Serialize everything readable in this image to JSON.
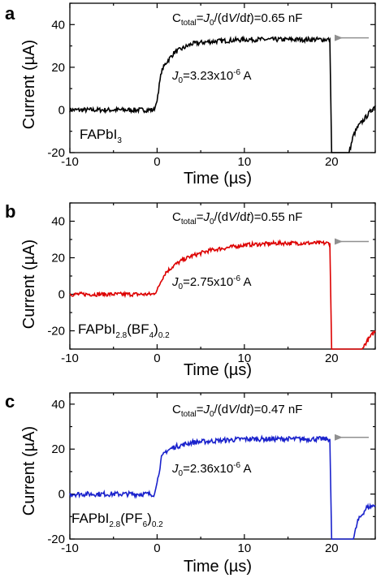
{
  "panels": [
    {
      "letter": "a",
      "ctotal_prefix": "C",
      "ctotal_sub": "total",
      "ctotal_eq": "=",
      "ctotal_j": "J",
      "ctotal_j_sub": "0",
      "ctotal_mid": "/(d",
      "ctotal_v": "V",
      "ctotal_slash": "/d",
      "ctotal_t": "t",
      "ctotal_value": ")=0.65 nF",
      "j0_j": "J",
      "j0_sub": "0",
      "j0_text": "=3.23x10",
      "j0_exp": "-6",
      "j0_unit": " A",
      "sample_main": "FAPbI",
      "sample_sub1": "3",
      "sample_mid": "",
      "sample_sub2": "",
      "sample_end": "",
      "sample_sub3": "",
      "color": "#000000"
    },
    {
      "letter": "b",
      "ctotal_prefix": "C",
      "ctotal_sub": "total",
      "ctotal_eq": "=",
      "ctotal_j": "J",
      "ctotal_j_sub": "0",
      "ctotal_mid": "/(d",
      "ctotal_v": "V",
      "ctotal_slash": "/d",
      "ctotal_t": "t",
      "ctotal_value": ")=0.55 nF",
      "j0_j": "J",
      "j0_sub": "0",
      "j0_text": "=2.75x10",
      "j0_exp": "-6",
      "j0_unit": " A",
      "sample_main": "FAPbI",
      "sample_sub1": "2.8",
      "sample_mid": "(BF",
      "sample_sub2": "4",
      "sample_end": ")",
      "sample_sub3": "0.2",
      "color": "#dd0000"
    },
    {
      "letter": "c",
      "ctotal_prefix": "C",
      "ctotal_sub": "total",
      "ctotal_eq": "=",
      "ctotal_j": "J",
      "ctotal_j_sub": "0",
      "ctotal_mid": "/(d",
      "ctotal_v": "V",
      "ctotal_slash": "/d",
      "ctotal_t": "t",
      "ctotal_value": ")=0.47 nF",
      "j0_j": "J",
      "j0_sub": "0",
      "j0_text": "=2.36x10",
      "j0_exp": "-6",
      "j0_unit": " A",
      "sample_main": "FAPbI",
      "sample_sub1": "2.8",
      "sample_mid": "(PF",
      "sample_sub2": "6",
      "sample_end": ")",
      "sample_sub3": "0.2",
      "color": "#1a22cc"
    }
  ],
  "chart_data": [
    {
      "type": "line",
      "xlabel": "Time (µs)",
      "ylabel": "Current (µA)",
      "xlim": [
        -10,
        25
      ],
      "ylim": [
        -20,
        50
      ],
      "xticks": [
        -10,
        0,
        10,
        20
      ],
      "yticks": [
        -20,
        0,
        20,
        40
      ],
      "series": [
        {
          "x": [
            -10,
            -0.3,
            0,
            0.5,
            1,
            2,
            3,
            4,
            6,
            8,
            10,
            12,
            14,
            16,
            18,
            19.8,
            20,
            22,
            22.5,
            23,
            24,
            25
          ],
          "y": [
            0,
            0,
            5,
            18,
            22,
            27,
            29,
            31,
            32,
            32.5,
            33,
            33,
            33,
            33,
            33,
            33,
            -20,
            -20,
            -12,
            -8,
            -3,
            2
          ]
        }
      ]
    },
    {
      "type": "line",
      "xlabel": "Time (µs)",
      "ylabel": "Current (µA)",
      "xlim": [
        -10,
        25
      ],
      "ylim": [
        -30,
        50
      ],
      "xticks": [
        -10,
        0,
        10,
        20
      ],
      "yticks": [
        -20,
        0,
        20,
        40
      ],
      "series": [
        {
          "x": [
            -10,
            -0.5,
            0,
            0.5,
            1,
            2,
            3,
            4,
            6,
            8,
            10,
            12,
            14,
            16,
            18,
            19.8,
            20,
            23.5,
            24,
            24.5,
            25
          ],
          "y": [
            0,
            0,
            2,
            8,
            12,
            16,
            19,
            21,
            24,
            25.5,
            27,
            27.5,
            28,
            28,
            28,
            28,
            -30,
            -30,
            -26,
            -23,
            -20
          ]
        }
      ]
    },
    {
      "type": "line",
      "xlabel": "Time (µs)",
      "ylabel": "Current (µA)",
      "xlim": [
        -10,
        25
      ],
      "ylim": [
        -20,
        45
      ],
      "xticks": [
        -10,
        0,
        10,
        20
      ],
      "yticks": [
        -20,
        0,
        20,
        40
      ],
      "series": [
        {
          "x": [
            -10,
            -0.3,
            0,
            0.5,
            1,
            2,
            3,
            4,
            6,
            8,
            10,
            12,
            14,
            16,
            18,
            19.8,
            20,
            22.5,
            23,
            24,
            25
          ],
          "y": [
            0,
            0,
            5,
            16,
            19,
            21,
            22,
            23,
            23.5,
            24,
            24.5,
            24.5,
            24.5,
            24.5,
            24.5,
            24.5,
            -20,
            -20,
            -12,
            -6,
            -5
          ]
        }
      ]
    }
  ]
}
